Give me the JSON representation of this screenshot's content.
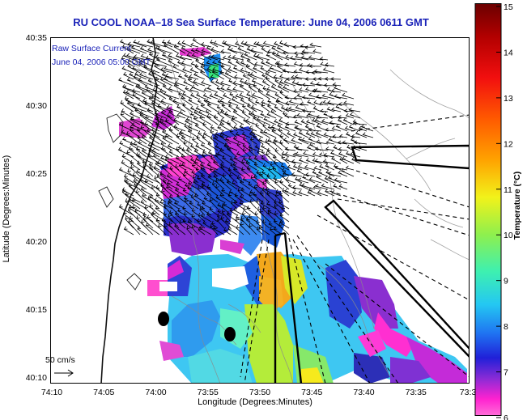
{
  "title": "RU COOL  NOAA–18  Sea Surface Temperature:  June 04, 2006 0611 GMT",
  "inset": {
    "line1": "Raw Surface Current",
    "line2": "June 04, 2006 05:00 GMT"
  },
  "scale_label": "50 cm/s",
  "axes": {
    "xlabel": "Longitude (Degrees:Minutes)",
    "ylabel": "Latitude (Degrees:Minutes)",
    "xticks": [
      "74:10",
      "74:05",
      "74:00",
      "73:55",
      "73:50",
      "73:45",
      "73:40",
      "73:35",
      "73:3"
    ],
    "yticks": [
      "40:35",
      "40:30",
      "40:25",
      "40:20",
      "40:15",
      "40:10"
    ]
  },
  "colorbar": {
    "label": "Temperature (°C)",
    "ticks": [
      "15",
      "14",
      "13",
      "12",
      "11",
      "10",
      "9",
      "8",
      "7",
      "6"
    ],
    "min": 6,
    "max": 15
  },
  "colors": {
    "title": "#1a22b8",
    "inset_text": "#1a22b8"
  }
}
